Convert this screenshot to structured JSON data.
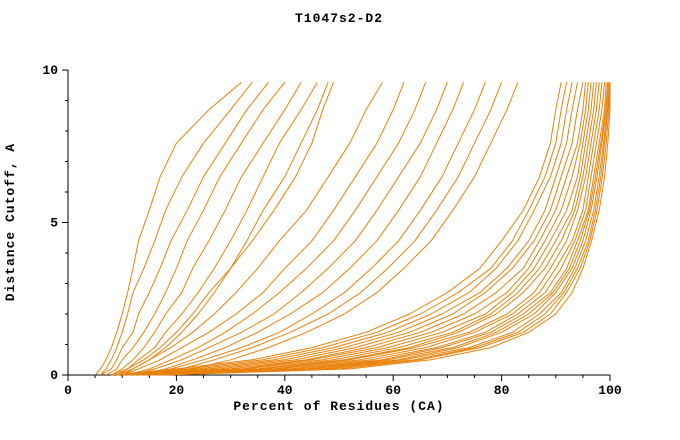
{
  "chart_data": {
    "type": "line",
    "title": "T1047s2-D2",
    "xlabel": "Percent of Residues (CA)",
    "ylabel": "Distance Cutoff, A",
    "xlim": [
      0,
      100
    ],
    "ylim": [
      0,
      10
    ],
    "x_major_ticks": [
      0,
      20,
      40,
      60,
      80,
      100
    ],
    "x_minor_step": 5,
    "y_major_ticks": [
      0,
      5,
      10
    ],
    "y_minor_step": 1,
    "grid": false,
    "legend": "none",
    "line_color": "#e8820c",
    "axis_color": "#000000",
    "y_levels": [
      0,
      0.2,
      0.5,
      0.9,
      1.4,
      2.0,
      2.7,
      3.5,
      4.4,
      5.4,
      6.5,
      7.6,
      8.7,
      9.6
    ],
    "series_x": [
      [
        5,
        6,
        7,
        8,
        9,
        10,
        11,
        12,
        13,
        15,
        17,
        20,
        26,
        32
      ],
      [
        6,
        7,
        8,
        9,
        10,
        11,
        12,
        14,
        16,
        18,
        21,
        25,
        30,
        34
      ],
      [
        6,
        8,
        9,
        10,
        12,
        13,
        15,
        17,
        19,
        22,
        25,
        29,
        33,
        37
      ],
      [
        7,
        9,
        10,
        12,
        14,
        16,
        18,
        20,
        22,
        25,
        28,
        32,
        36,
        40
      ],
      [
        8,
        10,
        12,
        14,
        16,
        18,
        21,
        23,
        26,
        29,
        32,
        36,
        40,
        43
      ],
      [
        9,
        11,
        13,
        16,
        18,
        21,
        24,
        27,
        30,
        33,
        36,
        39,
        43,
        46
      ],
      [
        10,
        12,
        15,
        18,
        21,
        24,
        27,
        30,
        33,
        36,
        40,
        43,
        46,
        48
      ],
      [
        8,
        11,
        14,
        17,
        20,
        23,
        26,
        30,
        34,
        38,
        42,
        45,
        47,
        49
      ],
      [
        9,
        12,
        15,
        19,
        23,
        27,
        31,
        35,
        39,
        44,
        48,
        52,
        55,
        58
      ],
      [
        10,
        13,
        17,
        21,
        26,
        31,
        36,
        40,
        45,
        49,
        53,
        57,
        60,
        62
      ],
      [
        11,
        15,
        19,
        24,
        29,
        34,
        39,
        44,
        49,
        53,
        57,
        61,
        64,
        66
      ],
      [
        12,
        16,
        21,
        26,
        32,
        38,
        43,
        48,
        53,
        57,
        61,
        65,
        68,
        70
      ],
      [
        13,
        18,
        23,
        29,
        35,
        41,
        47,
        52,
        57,
        61,
        65,
        68,
        71,
        73
      ],
      [
        14,
        19,
        25,
        32,
        39,
        45,
        51,
        56,
        61,
        65,
        69,
        72,
        75,
        77
      ],
      [
        15,
        21,
        27,
        34,
        41,
        48,
        54,
        59,
        64,
        68,
        72,
        75,
        78,
        80
      ],
      [
        16,
        23,
        30,
        37,
        44,
        51,
        57,
        62,
        67,
        71,
        75,
        78,
        81,
        83
      ],
      [
        8,
        20,
        34,
        45,
        55,
        63,
        70,
        76,
        80,
        84,
        87,
        89,
        90,
        91
      ],
      [
        9,
        22,
        36,
        47,
        57,
        65,
        72,
        78,
        82,
        85,
        88,
        90,
        91,
        92
      ],
      [
        9,
        24,
        38,
        49,
        59,
        67,
        74,
        79,
        83,
        86,
        89,
        91,
        92,
        93
      ],
      [
        10,
        26,
        40,
        51,
        61,
        69,
        76,
        81,
        85,
        88,
        90,
        92,
        93,
        94
      ],
      [
        10,
        28,
        42,
        53,
        63,
        71,
        77,
        82,
        86,
        89,
        91,
        93,
        94,
        95
      ],
      [
        11,
        30,
        44,
        55,
        65,
        73,
        79,
        84,
        87,
        90,
        92,
        94,
        95,
        95.5
      ],
      [
        11,
        32,
        45,
        57,
        67,
        75,
        81,
        85,
        88,
        91,
        93,
        94.5,
        95.5,
        96
      ],
      [
        12,
        33,
        47,
        59,
        69,
        77,
        82,
        86,
        89,
        92,
        94,
        95,
        96,
        96.5
      ],
      [
        12,
        35,
        49,
        61,
        71,
        78,
        83,
        87,
        90,
        93,
        94.5,
        95.5,
        96.5,
        97
      ],
      [
        13,
        36,
        51,
        63,
        72,
        79,
        84,
        88,
        91,
        93.5,
        95,
        96,
        97,
        97.5
      ],
      [
        13,
        38,
        52,
        64,
        74,
        81,
        86,
        89,
        92,
        94,
        95.5,
        96.5,
        97.5,
        98
      ],
      [
        14,
        39,
        54,
        66,
        75,
        82,
        87,
        90,
        93,
        95,
        96,
        97,
        98,
        98.5
      ],
      [
        14,
        41,
        56,
        68,
        77,
        83,
        88,
        91,
        93.5,
        95.5,
        96.5,
        97.5,
        98.5,
        99
      ],
      [
        15,
        42,
        58,
        69,
        78,
        84,
        89,
        92,
        94,
        96,
        97,
        98,
        99,
        99.3
      ],
      [
        15,
        44,
        59,
        71,
        79,
        85,
        89.5,
        92.5,
        94.5,
        96.2,
        97.3,
        98.3,
        99.2,
        99.6
      ],
      [
        16,
        45,
        61,
        72,
        80,
        86,
        90,
        93,
        95,
        96.5,
        97.6,
        98.5,
        99.3,
        99.8
      ],
      [
        16,
        47,
        62,
        74,
        82,
        87,
        91,
        93.5,
        95.5,
        97,
        98,
        98.8,
        99.5,
        100
      ],
      [
        17,
        48,
        64,
        75,
        83,
        88,
        91.5,
        94,
        96,
        97.3,
        98.3,
        99,
        99.6,
        100
      ],
      [
        17,
        50,
        65,
        76,
        84,
        89,
        92,
        94.5,
        96.3,
        97.6,
        98.6,
        99.3,
        99.8,
        100
      ],
      [
        18,
        52,
        67,
        78,
        85,
        90,
        93,
        95,
        96.6,
        98,
        99,
        99.6,
        100,
        100
      ]
    ]
  }
}
